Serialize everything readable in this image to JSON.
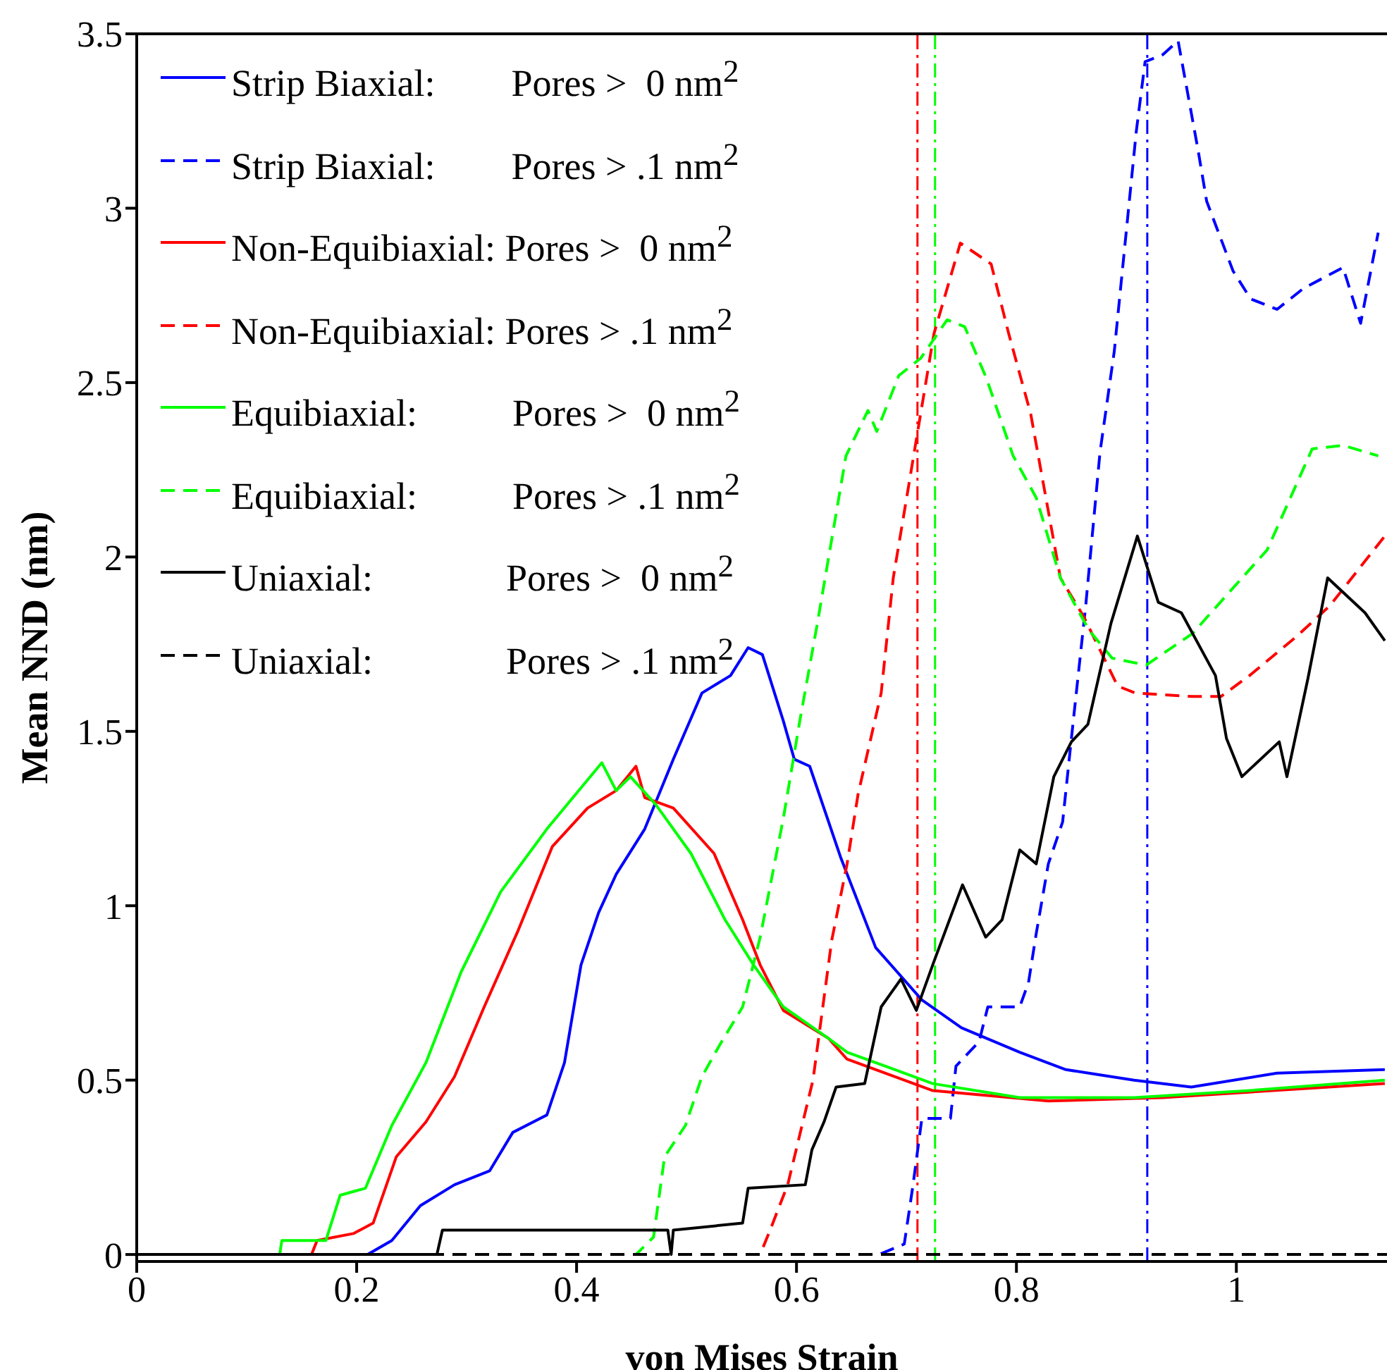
{
  "chart_data": {
    "type": "line",
    "xlabel": "von Mises Strain",
    "ylabel": "Mean NND (nm)",
    "xlim": [
      0,
      1.137
    ],
    "ylim": [
      -0.02,
      3.5
    ],
    "xticks": [
      0,
      0.2,
      0.4,
      0.6,
      0.8,
      1
    ],
    "yticks": [
      0,
      0.5,
      1,
      1.5,
      2,
      2.5,
      3,
      3.5
    ],
    "grid": false,
    "legend": "top left",
    "marker": "none",
    "series": [
      {
        "name": "Strip Biaxial:        Pores >  0 nm$^{2}$",
        "color": "#0000ff",
        "line_style": "solid",
        "x": [
          0,
          0.21,
          0.232,
          0.258,
          0.289,
          0.321,
          0.342,
          0.373,
          0.389,
          0.404,
          0.42,
          0.436,
          0.462,
          0.488,
          0.514,
          0.54,
          0.556,
          0.569,
          0.588,
          0.598,
          0.612,
          0.64,
          0.672,
          0.714,
          0.75,
          0.803,
          0.845,
          0.907,
          0.959,
          1.037,
          1.135
        ],
        "values": [
          0,
          0,
          0.04,
          0.14,
          0.2,
          0.24,
          0.35,
          0.4,
          0.55,
          0.83,
          0.98,
          1.09,
          1.22,
          1.42,
          1.61,
          1.66,
          1.74,
          1.72,
          1.53,
          1.42,
          1.4,
          1.14,
          0.88,
          0.73,
          0.65,
          0.58,
          0.53,
          0.5,
          0.48,
          0.52,
          0.53
        ]
      },
      {
        "name": "Strip Biaxial:        Pores > .1 nm$^{2}$",
        "color": "#0000ff",
        "line_style": "dashed",
        "x": [
          0,
          0.675,
          0.698,
          0.706,
          0.714,
          0.74,
          0.745,
          0.766,
          0.774,
          0.803,
          0.811,
          0.818,
          0.829,
          0.842,
          0.85,
          0.863,
          0.876,
          0.889,
          0.909,
          0.917,
          0.933,
          0.947,
          0.965,
          0.973,
          0.997,
          1.013,
          1.037,
          1.061,
          1.097,
          1.113,
          1.129
        ],
        "values": [
          0,
          0,
          0.03,
          0.2,
          0.39,
          0.39,
          0.54,
          0.61,
          0.71,
          0.71,
          0.78,
          0.92,
          1.12,
          1.24,
          1.48,
          1.86,
          2.3,
          2.59,
          3.22,
          3.42,
          3.44,
          3.48,
          3.17,
          3.02,
          2.82,
          2.74,
          2.71,
          2.77,
          2.83,
          2.67,
          2.93
        ]
      },
      {
        "name": "Non-Equibiaxial: Pores >  0 nm$^{2}$",
        "color": "#ff0000",
        "line_style": "solid",
        "x": [
          0,
          0.159,
          0.164,
          0.197,
          0.215,
          0.236,
          0.263,
          0.289,
          0.316,
          0.347,
          0.378,
          0.41,
          0.436,
          0.454,
          0.462,
          0.488,
          0.525,
          0.551,
          0.567,
          0.588,
          0.629,
          0.646,
          0.724,
          0.829,
          0.933,
          1.135
        ],
        "values": [
          0,
          0,
          0.04,
          0.06,
          0.09,
          0.28,
          0.38,
          0.51,
          0.71,
          0.93,
          1.17,
          1.28,
          1.33,
          1.4,
          1.31,
          1.28,
          1.15,
          0.96,
          0.83,
          0.7,
          0.62,
          0.56,
          0.47,
          0.44,
          0.45,
          0.49
        ]
      },
      {
        "name": "Non-Equibiaxial: Pores > .1 nm$^{2}$",
        "color": "#ff0000",
        "line_style": "dashed",
        "x": [
          0,
          0.567,
          0.576,
          0.592,
          0.615,
          0.632,
          0.646,
          0.656,
          0.677,
          0.688,
          0.706,
          0.725,
          0.749,
          0.777,
          0.793,
          0.813,
          0.84,
          0.861,
          0.892,
          0.908,
          0.96,
          0.986,
          1.012,
          1.054,
          1.085,
          1.135
        ],
        "values": [
          0,
          0,
          0.07,
          0.2,
          0.5,
          0.9,
          1.12,
          1.32,
          1.61,
          1.94,
          2.28,
          2.64,
          2.9,
          2.84,
          2.64,
          2.41,
          1.94,
          1.83,
          1.63,
          1.61,
          1.6,
          1.6,
          1.66,
          1.77,
          1.86,
          2.06
        ]
      },
      {
        "name": "Equibiaxial:          Pores >  0 nm$^{2}$",
        "color": "#00ff00",
        "line_style": "solid",
        "x": [
          0,
          0.13,
          0.132,
          0.172,
          0.185,
          0.208,
          0.232,
          0.263,
          0.295,
          0.331,
          0.373,
          0.423,
          0.436,
          0.449,
          0.472,
          0.504,
          0.535,
          0.561,
          0.588,
          0.629,
          0.646,
          0.724,
          0.803,
          0.907,
          1.012,
          1.135
        ],
        "values": [
          0,
          0,
          0.04,
          0.04,
          0.17,
          0.19,
          0.37,
          0.55,
          0.81,
          1.04,
          1.22,
          1.41,
          1.33,
          1.37,
          1.29,
          1.15,
          0.96,
          0.83,
          0.71,
          0.62,
          0.58,
          0.49,
          0.45,
          0.45,
          0.47,
          0.5
        ]
      },
      {
        "name": "Equibiaxial:          Pores > .1 nm$^{2}$",
        "color": "#00ff00",
        "line_style": "dashed",
        "x": [
          0,
          0.454,
          0.47,
          0.48,
          0.499,
          0.514,
          0.53,
          0.551,
          0.567,
          0.588,
          0.603,
          0.619,
          0.645,
          0.665,
          0.673,
          0.693,
          0.713,
          0.737,
          0.753,
          0.773,
          0.797,
          0.818,
          0.84,
          0.866,
          0.887,
          0.918,
          0.96,
          0.991,
          1.028,
          1.069,
          1.097,
          1.129
        ],
        "values": [
          0,
          0,
          0.05,
          0.28,
          0.37,
          0.51,
          0.6,
          0.71,
          0.91,
          1.25,
          1.53,
          1.81,
          2.29,
          2.42,
          2.36,
          2.52,
          2.57,
          2.68,
          2.66,
          2.51,
          2.29,
          2.17,
          1.94,
          1.79,
          1.71,
          1.69,
          1.78,
          1.89,
          2.02,
          2.31,
          2.32,
          2.29
        ]
      },
      {
        "name": "Uniaxial:              Pores >  0 nm$^{2}$",
        "color": "#000000",
        "line_style": "solid",
        "x": [
          0,
          0.273,
          0.278,
          0.483,
          0.486,
          0.488,
          0.551,
          0.556,
          0.608,
          0.614,
          0.625,
          0.636,
          0.662,
          0.677,
          0.695,
          0.709,
          0.725,
          0.751,
          0.772,
          0.787,
          0.803,
          0.818,
          0.834,
          0.85,
          0.865,
          0.886,
          0.91,
          0.929,
          0.95,
          0.981,
          0.991,
          1.005,
          1.039,
          1.046,
          1.065,
          1.083,
          1.117,
          1.135
        ],
        "values": [
          0,
          0,
          0.07,
          0.07,
          0,
          0.07,
          0.09,
          0.19,
          0.2,
          0.3,
          0.38,
          0.48,
          0.49,
          0.71,
          0.79,
          0.7,
          0.84,
          1.06,
          0.91,
          0.96,
          1.16,
          1.12,
          1.37,
          1.47,
          1.52,
          1.81,
          2.06,
          1.87,
          1.84,
          1.66,
          1.48,
          1.37,
          1.47,
          1.37,
          1.65,
          1.94,
          1.84,
          1.76
        ]
      },
      {
        "name": "Uniaxial:              Pores > .1 nm$^{2}$",
        "color": "#000000",
        "line_style": "dashed",
        "x": [
          0,
          1.137
        ],
        "values": [
          0,
          0
        ]
      }
    ],
    "ref_lines": [
      {
        "axis": "x",
        "value": 0.71,
        "color": "#ff0000",
        "line_style": "dashdot"
      },
      {
        "axis": "x",
        "value": 0.726,
        "color": "#00ff00",
        "line_style": "dashdot"
      },
      {
        "axis": "x",
        "value": 0.919,
        "color": "#0000ff",
        "line_style": "dashdot"
      }
    ]
  }
}
